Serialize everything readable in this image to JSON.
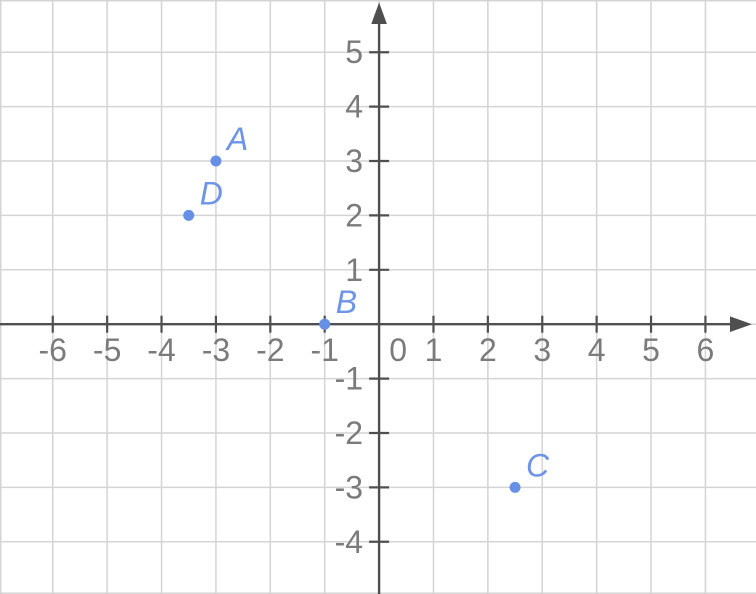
{
  "chart_data": {
    "type": "scatter",
    "title": "",
    "xlabel": "",
    "ylabel": "",
    "points": [
      {
        "label": "A",
        "x": -3,
        "y": 3
      },
      {
        "label": "B",
        "x": -1,
        "y": 0
      },
      {
        "label": "C",
        "x": 2.5,
        "y": -3
      },
      {
        "label": "D",
        "x": -3.5,
        "y": 2
      }
    ],
    "x_tick_labels": [
      -6,
      -5,
      -4,
      -3,
      -2,
      -1,
      0,
      1,
      2,
      3,
      4,
      5,
      6
    ],
    "y_tick_labels": [
      -4,
      -3,
      -2,
      -1,
      1,
      2,
      3,
      4,
      5
    ],
    "x_gridlines": [
      -7,
      -6,
      -5,
      -4,
      -3,
      -2,
      -1,
      0,
      1,
      2,
      3,
      4,
      5,
      6
    ],
    "y_gridlines": [
      -5,
      -4,
      -3,
      -2,
      -1,
      0,
      1,
      2,
      3,
      4,
      5,
      6
    ],
    "xlim": [
      -6.97,
      6.93
    ],
    "ylim": [
      -4.96,
      5.96
    ],
    "grid": true,
    "legend": false,
    "axis_arrows": [
      "x-right",
      "y-top"
    ],
    "colors": {
      "point": "#6590e6",
      "point_label": "#6d94e8",
      "axis": "#4f4f4f",
      "tick_label": "#7b7b7b",
      "grid": "#d4d4d4",
      "background": "#ffffff"
    }
  }
}
